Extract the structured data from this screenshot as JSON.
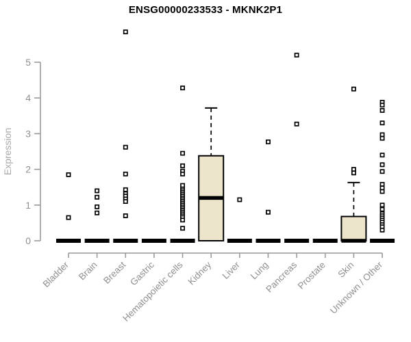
{
  "page": {
    "title": "ENSG00000233533 - MKNK2P1"
  },
  "chart_data": {
    "type": "boxplot",
    "title": "ENSG00000233533 - MKNK2P1",
    "xlabel": "",
    "ylabel": "Expression",
    "ylim": [
      0,
      5
    ],
    "yticks": [
      0,
      1,
      2,
      3,
      4,
      5
    ],
    "grid": false,
    "legend": "none",
    "categories": [
      "Bladder",
      "Brain",
      "Breast",
      "Gastric",
      "Hematopoietic cells",
      "Kidney",
      "Liver",
      "Lung",
      "Pancreas",
      "Prostate",
      "Skin",
      "Unknown / Other"
    ],
    "boxes": [
      {
        "category": "Bladder",
        "q1": 0,
        "median": 0,
        "q3": 0,
        "whisker_low": 0,
        "whisker_high": 0
      },
      {
        "category": "Brain",
        "q1": 0,
        "median": 0,
        "q3": 0,
        "whisker_low": 0,
        "whisker_high": 0
      },
      {
        "category": "Breast",
        "q1": 0,
        "median": 0,
        "q3": 0,
        "whisker_low": 0,
        "whisker_high": 0
      },
      {
        "category": "Gastric",
        "q1": 0,
        "median": 0,
        "q3": 0,
        "whisker_low": 0,
        "whisker_high": 0
      },
      {
        "category": "Hematopoietic cells",
        "q1": 0,
        "median": 0,
        "q3": 0,
        "whisker_low": 0,
        "whisker_high": 0
      },
      {
        "category": "Kidney",
        "q1": 0,
        "median": 1.2,
        "q3": 2.38,
        "whisker_low": 0,
        "whisker_high": 3.72
      },
      {
        "category": "Liver",
        "q1": 0,
        "median": 0,
        "q3": 0,
        "whisker_low": 0,
        "whisker_high": 0
      },
      {
        "category": "Lung",
        "q1": 0,
        "median": 0,
        "q3": 0,
        "whisker_low": 0,
        "whisker_high": 0
      },
      {
        "category": "Pancreas",
        "q1": 0,
        "median": 0,
        "q3": 0,
        "whisker_low": 0,
        "whisker_high": 0
      },
      {
        "category": "Prostate",
        "q1": 0,
        "median": 0,
        "q3": 0,
        "whisker_low": 0,
        "whisker_high": 0
      },
      {
        "category": "Skin",
        "q1": 0,
        "median": 0,
        "q3": 0.68,
        "whisker_low": 0,
        "whisker_high": 1.63
      },
      {
        "category": "Unknown / Other",
        "q1": 0,
        "median": 0,
        "q3": 0,
        "whisker_low": 0,
        "whisker_high": 0
      }
    ],
    "outliers": [
      [
        1.85,
        0.65
      ],
      [
        1.4,
        1.22,
        0.95,
        0.78
      ],
      [
        5.85,
        2.62,
        1.87,
        1.43,
        1.32,
        1.25,
        1.17,
        1.1,
        0.7
      ],
      [],
      [
        4.28,
        2.45,
        2.1,
        1.95,
        1.87,
        1.55,
        1.45,
        1.4,
        1.35,
        1.3,
        1.25,
        1.2,
        1.15,
        1.1,
        1.05,
        1.0,
        0.95,
        0.9,
        0.85,
        0.8,
        0.75,
        0.7,
        0.65,
        0.58,
        0.35
      ],
      [],
      [
        1.15
      ],
      [
        2.77,
        0.8
      ],
      [
        5.2,
        3.27
      ],
      [],
      [
        4.25,
        2.0,
        1.9
      ],
      [
        3.88,
        3.8,
        3.65,
        3.3,
        2.97,
        2.87,
        2.4,
        2.13,
        1.94,
        1.58,
        1.48,
        1.38,
        1.0,
        0.88,
        0.76,
        0.7,
        0.64,
        0.58,
        0.52,
        0.45,
        0.39,
        0.3
      ]
    ],
    "colors": {
      "box_fill": "#ece5cb",
      "box_stroke": "#000000",
      "median": "#000000",
      "flat_box": "#000000",
      "axis": "#999999",
      "tick_label": "#8f8f8f",
      "axis_label": "#a9a9a9",
      "title": "#000000",
      "outlier_fill": "#ffffff",
      "outlier_stroke": "#000000",
      "background": "#ffffff"
    }
  }
}
